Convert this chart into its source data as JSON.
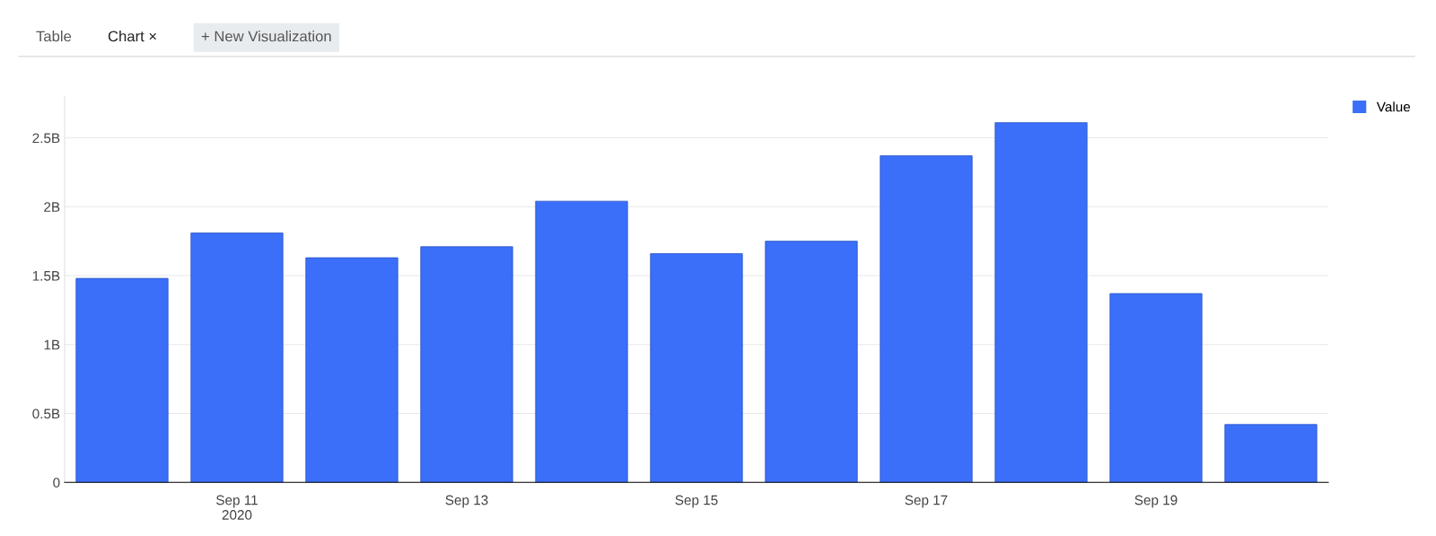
{
  "chart_data": {
    "type": "bar",
    "x": [
      "2020-09-10",
      "2020-09-11",
      "2020-09-12",
      "2020-09-13",
      "2020-09-14",
      "2020-09-15",
      "2020-09-16",
      "2020-09-17",
      "2020-09-18",
      "2020-09-19",
      "2020-09-20"
    ],
    "series": [
      {
        "name": "Value",
        "color": "#3b6ff9",
        "values": [
          1.48,
          1.81,
          1.63,
          1.71,
          2.04,
          1.66,
          1.75,
          2.37,
          2.61,
          1.37,
          0.42
        ]
      }
    ],
    "xlim": [
      "2020-09-09T12:00",
      "2020-09-20T12:00"
    ],
    "xticks": [
      {
        "value": "2020-09-11",
        "label": "Sep 11\n2020"
      },
      {
        "value": "2020-09-13",
        "label": "Sep 13"
      },
      {
        "value": "2020-09-15",
        "label": "Sep 15"
      },
      {
        "value": "2020-09-17",
        "label": "Sep 17"
      },
      {
        "value": "2020-09-19",
        "label": "Sep 19"
      }
    ],
    "ylim": [
      0,
      2.8
    ],
    "yticks": [
      0,
      {
        "value": 0.5,
        "label": "0.5B"
      },
      {
        "value": 1,
        "label": "1B"
      },
      {
        "value": 1.5,
        "label": "1.5B"
      },
      {
        "value": 2,
        "label": "2B"
      },
      {
        "value": 2.5,
        "label": "2.5B"
      }
    ],
    "grid": "y",
    "legend": "top right",
    "annotations": [
      "Table",
      "Chart ×",
      "+ New Visualization"
    ]
  }
}
